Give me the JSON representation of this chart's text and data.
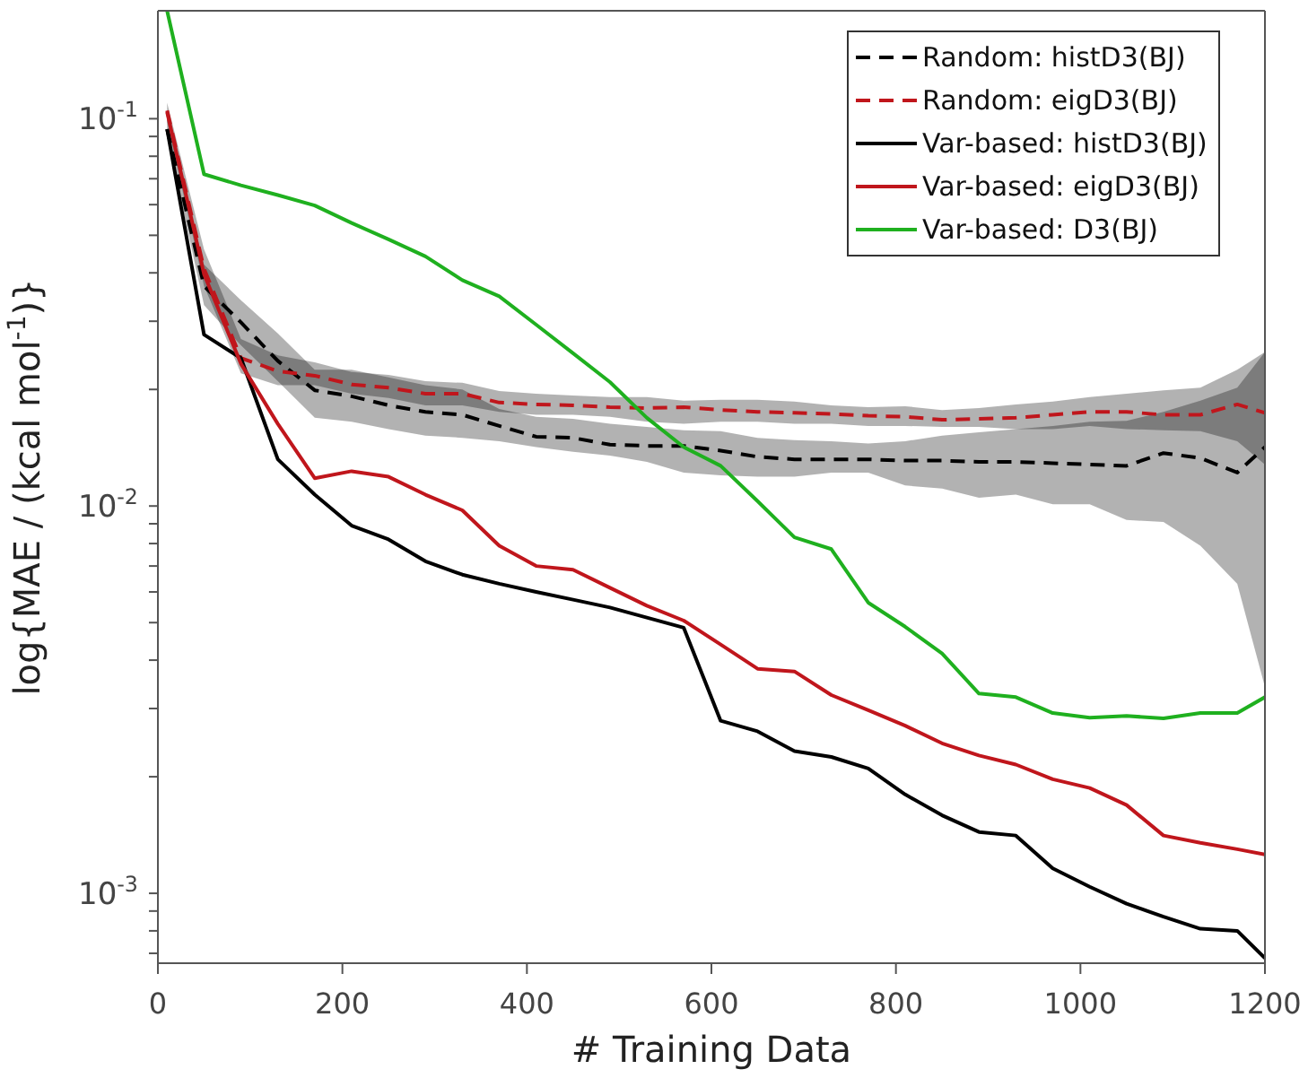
{
  "chart_data": {
    "type": "line",
    "xlabel": "# Training Data",
    "ylabel": "log{MAE / (kcal mol$^{-1}$)}",
    "log": "y",
    "legend": "top right",
    "xlim": [
      0,
      1200
    ],
    "xticks": [
      0,
      200,
      400,
      600,
      800,
      1000,
      1200
    ],
    "ylim": [
      0.00066,
      0.19
    ],
    "yticks": [
      {
        "value": 0.0007,
        "label": null
      },
      {
        "value": 0.0008,
        "label": null
      },
      {
        "value": 0.0009,
        "label": null
      },
      {
        "value": 0.001,
        "label": "10$^{-3}$"
      },
      {
        "value": 0.002,
        "label": null
      },
      {
        "value": 0.003,
        "label": null
      },
      {
        "value": 0.004,
        "label": null
      },
      {
        "value": 0.005,
        "label": null
      },
      {
        "value": 0.006,
        "label": null
      },
      {
        "value": 0.007,
        "label": null
      },
      {
        "value": 0.008,
        "label": null
      },
      {
        "value": 0.009,
        "label": null
      },
      {
        "value": 0.01,
        "label": "10$^{-2}$"
      },
      {
        "value": 0.02,
        "label": null
      },
      {
        "value": 0.03,
        "label": null
      },
      {
        "value": 0.04,
        "label": null
      },
      {
        "value": 0.05,
        "label": null
      },
      {
        "value": 0.06,
        "label": null
      },
      {
        "value": 0.07,
        "label": null
      },
      {
        "value": 0.08,
        "label": null
      },
      {
        "value": 0.09,
        "label": null
      },
      {
        "value": 0.1,
        "label": "10$^{-1}$"
      }
    ],
    "x": [
      10,
      50,
      90,
      130,
      170,
      210,
      250,
      290,
      330,
      370,
      410,
      450,
      490,
      530,
      570,
      610,
      650,
      690,
      730,
      770,
      810,
      850,
      890,
      930,
      970,
      1010,
      1050,
      1090,
      1130,
      1170,
      1200
    ],
    "series": [
      {
        "name": "Random: histD3(BJ)",
        "color": "#000000",
        "line_style": "dashed",
        "values": [
          0.094,
          0.037,
          0.0298,
          0.0237,
          0.0199,
          0.0192,
          0.0182,
          0.0175,
          0.0172,
          0.0161,
          0.0151,
          0.015,
          0.0144,
          0.0143,
          0.0143,
          0.0139,
          0.0134,
          0.0132,
          0.0132,
          0.0132,
          0.0131,
          0.0131,
          0.013,
          0.013,
          0.0129,
          0.0128,
          0.0127,
          0.0137,
          0.0133,
          0.0122,
          0.0142
        ],
        "lower": [
          0.09,
          0.033,
          0.026,
          0.021,
          0.0169,
          0.0165,
          0.0158,
          0.0152,
          0.015,
          0.0147,
          0.0142,
          0.0138,
          0.0135,
          0.013,
          0.0122,
          0.012,
          0.0119,
          0.0119,
          0.0122,
          0.0122,
          0.0113,
          0.0111,
          0.0105,
          0.0107,
          0.0101,
          0.0101,
          0.0092,
          0.0091,
          0.0079,
          0.0063,
          0.00341
        ],
        "upper": [
          0.1,
          0.042,
          0.034,
          0.0279,
          0.0225,
          0.0225,
          0.0215,
          0.0205,
          0.02,
          0.0178,
          0.017,
          0.0168,
          0.0163,
          0.016,
          0.0157,
          0.0156,
          0.015,
          0.0148,
          0.0147,
          0.0145,
          0.0147,
          0.0152,
          0.0155,
          0.0158,
          0.0161,
          0.0165,
          0.0166,
          0.0175,
          0.0187,
          0.0202,
          0.025
        ]
      },
      {
        "name": "Random: eigD3(BJ)",
        "color": "#c0161c",
        "line_style": "dashed",
        "values": [
          0.105,
          0.041,
          0.0241,
          0.0223,
          0.0217,
          0.0206,
          0.0202,
          0.0195,
          0.0195,
          0.0185,
          0.0183,
          0.0182,
          0.018,
          0.0179,
          0.018,
          0.0177,
          0.0175,
          0.0174,
          0.0173,
          0.0171,
          0.017,
          0.0167,
          0.0168,
          0.0169,
          0.0172,
          0.0175,
          0.0175,
          0.0172,
          0.0172,
          0.0183,
          0.0174
        ],
        "lower": [
          0.098,
          0.037,
          0.022,
          0.0205,
          0.0205,
          0.0195,
          0.019,
          0.0182,
          0.0182,
          0.0175,
          0.0172,
          0.0172,
          0.017,
          0.0165,
          0.0163,
          0.0165,
          0.0165,
          0.0163,
          0.0163,
          0.0161,
          0.0161,
          0.016,
          0.016,
          0.0158,
          0.0158,
          0.0161,
          0.0158,
          0.0157,
          0.0156,
          0.0147,
          0.0128
        ],
        "upper": [
          0.11,
          0.046,
          0.027,
          0.0245,
          0.0235,
          0.0222,
          0.0218,
          0.021,
          0.0208,
          0.0198,
          0.0195,
          0.0193,
          0.0191,
          0.0191,
          0.0187,
          0.0188,
          0.0188,
          0.0186,
          0.0182,
          0.018,
          0.0181,
          0.0177,
          0.0179,
          0.0183,
          0.0186,
          0.0191,
          0.0195,
          0.0199,
          0.0202,
          0.0225,
          0.025
        ]
      },
      {
        "name": "Var-based: histD3(BJ)",
        "color": "#000000",
        "line_style": "solid",
        "values": [
          0.094,
          0.0277,
          0.0241,
          0.0132,
          0.0107,
          0.0089,
          0.0082,
          0.0072,
          0.00665,
          0.0063,
          0.006,
          0.00573,
          0.00547,
          0.00515,
          0.00485,
          0.00279,
          0.00262,
          0.00233,
          0.00225,
          0.0021,
          0.0018,
          0.00159,
          0.00144,
          0.00141,
          0.00116,
          0.00104,
          0.00094,
          0.00087,
          0.00081,
          0.0008,
          0.00068
        ]
      },
      {
        "name": "Var-based: eigD3(BJ)",
        "color": "#c0161c",
        "line_style": "solid",
        "values": [
          0.104,
          0.0397,
          0.0233,
          0.0163,
          0.0118,
          0.0123,
          0.0119,
          0.0107,
          0.00975,
          0.0079,
          0.007,
          0.00685,
          0.00615,
          0.00553,
          0.00506,
          0.00439,
          0.0038,
          0.00374,
          0.00325,
          0.00297,
          0.00271,
          0.00244,
          0.00227,
          0.00215,
          0.00197,
          0.00187,
          0.00169,
          0.00141,
          0.00135,
          0.0013,
          0.00126
        ]
      },
      {
        "name": "Var-based: D3(BJ)",
        "color": "#1fb01f",
        "line_style": "solid",
        "values": [
          0.19,
          0.0719,
          0.0673,
          0.0635,
          0.0597,
          0.0538,
          0.0488,
          0.0441,
          0.0383,
          0.0348,
          0.0294,
          0.0248,
          0.0209,
          0.0169,
          0.0142,
          0.0127,
          0.0103,
          0.0083,
          0.00774,
          0.00563,
          0.00488,
          0.00416,
          0.00328,
          0.00321,
          0.00292,
          0.00284,
          0.00287,
          0.00283,
          0.00292,
          0.00292,
          0.00321
        ]
      }
    ]
  }
}
